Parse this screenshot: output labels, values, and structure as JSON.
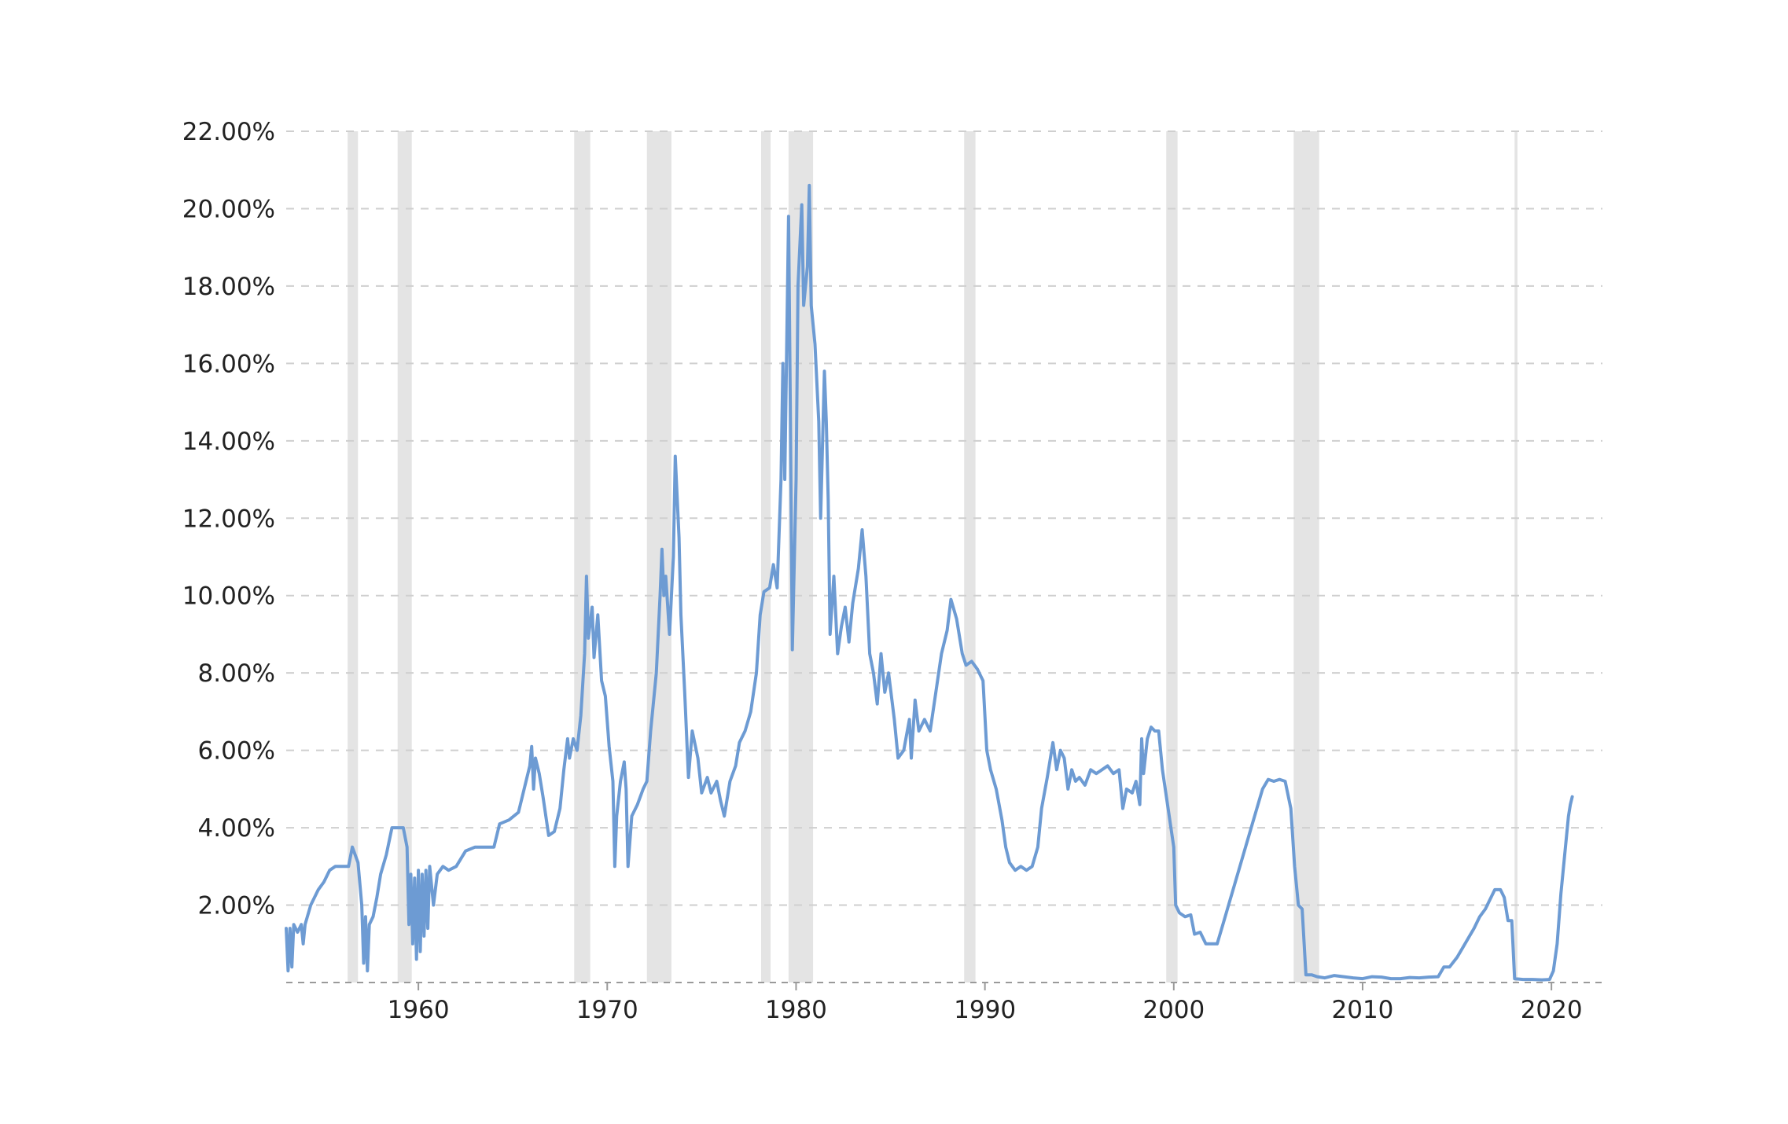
{
  "chart_data": {
    "type": "line",
    "title": "",
    "xlabel": "",
    "ylabel": "",
    "x_range": [
      1953.0,
      2022.7
    ],
    "ylim": [
      0,
      22
    ],
    "y_ticks": [
      {
        "value": 2,
        "label": "2.00%"
      },
      {
        "value": 4,
        "label": "4.00%"
      },
      {
        "value": 6,
        "label": "6.00%"
      },
      {
        "value": 8,
        "label": "8.00%"
      },
      {
        "value": 10,
        "label": "10.00%"
      },
      {
        "value": 12,
        "label": "12.00%"
      },
      {
        "value": 14,
        "label": "14.00%"
      },
      {
        "value": 16,
        "label": "16.00%"
      },
      {
        "value": 18,
        "label": "18.00%"
      },
      {
        "value": 20,
        "label": "20.00%"
      },
      {
        "value": 22,
        "label": "22.00%"
      }
    ],
    "x_ticks": [
      {
        "value": 1960,
        "label": "1960"
      },
      {
        "value": 1970,
        "label": "1970"
      },
      {
        "value": 1980,
        "label": "1980"
      },
      {
        "value": 1990,
        "label": "1990"
      },
      {
        "value": 2000,
        "label": "2000"
      },
      {
        "value": 2010,
        "label": "2010"
      },
      {
        "value": 2020,
        "label": "2020"
      }
    ],
    "grid": true,
    "legend": "none",
    "line_color": "#6d9bd3",
    "recession_color": "#e4e4e4",
    "recessions": [
      [
        1956.25,
        1956.8
      ],
      [
        1958.9,
        1959.65
      ],
      [
        1968.25,
        1969.1
      ],
      [
        1972.1,
        1973.4
      ],
      [
        1978.15,
        1978.65
      ],
      [
        1979.6,
        1980.9
      ],
      [
        1988.9,
        1989.5
      ],
      [
        1999.6,
        2000.2
      ],
      [
        2006.35,
        2007.7
      ],
      [
        2018.05,
        2018.2
      ]
    ],
    "series": [
      {
        "points": [
          [
            1953.0,
            1.4
          ],
          [
            1953.1,
            0.3
          ],
          [
            1953.2,
            1.4
          ],
          [
            1953.3,
            0.4
          ],
          [
            1953.4,
            1.5
          ],
          [
            1953.6,
            1.3
          ],
          [
            1953.8,
            1.5
          ],
          [
            1953.9,
            1.0
          ],
          [
            1954.0,
            1.5
          ],
          [
            1954.3,
            2.0
          ],
          [
            1954.7,
            2.4
          ],
          [
            1955.0,
            2.6
          ],
          [
            1955.3,
            2.9
          ],
          [
            1955.6,
            3.0
          ],
          [
            1956.0,
            3.0
          ],
          [
            1956.3,
            3.0
          ],
          [
            1956.5,
            3.5
          ],
          [
            1956.8,
            3.1
          ],
          [
            1957.0,
            2.0
          ],
          [
            1957.1,
            0.5
          ],
          [
            1957.2,
            1.7
          ],
          [
            1957.3,
            0.3
          ],
          [
            1957.4,
            1.5
          ],
          [
            1957.6,
            1.7
          ],
          [
            1957.8,
            2.2
          ],
          [
            1958.0,
            2.8
          ],
          [
            1958.3,
            3.3
          ],
          [
            1958.6,
            4.0
          ],
          [
            1959.0,
            4.0
          ],
          [
            1959.2,
            4.0
          ],
          [
            1959.4,
            3.5
          ],
          [
            1959.5,
            1.5
          ],
          [
            1959.6,
            2.8
          ],
          [
            1959.7,
            1.0
          ],
          [
            1959.8,
            2.7
          ],
          [
            1959.9,
            0.6
          ],
          [
            1960.0,
            2.9
          ],
          [
            1960.1,
            0.8
          ],
          [
            1960.2,
            2.8
          ],
          [
            1960.3,
            1.2
          ],
          [
            1960.4,
            2.9
          ],
          [
            1960.5,
            1.4
          ],
          [
            1960.6,
            3.0
          ],
          [
            1960.8,
            2.0
          ],
          [
            1961.0,
            2.8
          ],
          [
            1961.3,
            3.0
          ],
          [
            1961.6,
            2.9
          ],
          [
            1962.0,
            3.0
          ],
          [
            1962.5,
            3.4
          ],
          [
            1963.0,
            3.5
          ],
          [
            1963.5,
            3.5
          ],
          [
            1964.0,
            3.5
          ],
          [
            1964.3,
            4.1
          ],
          [
            1964.8,
            4.2
          ],
          [
            1965.3,
            4.4
          ],
          [
            1965.6,
            5.0
          ],
          [
            1965.9,
            5.6
          ],
          [
            1966.0,
            6.1
          ],
          [
            1966.1,
            5.0
          ],
          [
            1966.2,
            5.8
          ],
          [
            1966.4,
            5.4
          ],
          [
            1966.6,
            4.8
          ],
          [
            1966.9,
            3.8
          ],
          [
            1967.2,
            3.9
          ],
          [
            1967.5,
            4.5
          ],
          [
            1967.7,
            5.5
          ],
          [
            1967.9,
            6.3
          ],
          [
            1968.0,
            5.8
          ],
          [
            1968.2,
            6.3
          ],
          [
            1968.4,
            6.0
          ],
          [
            1968.6,
            6.9
          ],
          [
            1968.8,
            8.5
          ],
          [
            1968.9,
            10.5
          ],
          [
            1969.0,
            8.9
          ],
          [
            1969.2,
            9.7
          ],
          [
            1969.3,
            8.4
          ],
          [
            1969.5,
            9.5
          ],
          [
            1969.7,
            7.8
          ],
          [
            1969.9,
            7.4
          ],
          [
            1970.1,
            6.1
          ],
          [
            1970.3,
            5.2
          ],
          [
            1970.4,
            3.0
          ],
          [
            1970.5,
            4.3
          ],
          [
            1970.7,
            5.2
          ],
          [
            1970.9,
            5.7
          ],
          [
            1971.0,
            5.0
          ],
          [
            1971.1,
            3.0
          ],
          [
            1971.3,
            4.3
          ],
          [
            1971.6,
            4.6
          ],
          [
            1971.9,
            5.0
          ],
          [
            1972.1,
            5.2
          ],
          [
            1972.3,
            6.5
          ],
          [
            1972.6,
            8.0
          ],
          [
            1972.8,
            10.0
          ],
          [
            1972.9,
            11.2
          ],
          [
            1973.0,
            10.0
          ],
          [
            1973.1,
            10.5
          ],
          [
            1973.3,
            9.0
          ],
          [
            1973.5,
            11.0
          ],
          [
            1973.6,
            13.6
          ],
          [
            1973.8,
            11.5
          ],
          [
            1973.9,
            9.5
          ],
          [
            1974.1,
            7.5
          ],
          [
            1974.3,
            5.3
          ],
          [
            1974.5,
            6.5
          ],
          [
            1974.8,
            5.8
          ],
          [
            1975.0,
            4.9
          ],
          [
            1975.3,
            5.3
          ],
          [
            1975.5,
            4.9
          ],
          [
            1975.8,
            5.2
          ],
          [
            1976.0,
            4.7
          ],
          [
            1976.2,
            4.3
          ],
          [
            1976.5,
            5.2
          ],
          [
            1976.8,
            5.6
          ],
          [
            1977.0,
            6.2
          ],
          [
            1977.3,
            6.5
          ],
          [
            1977.6,
            7.0
          ],
          [
            1977.9,
            8.0
          ],
          [
            1978.1,
            9.5
          ],
          [
            1978.3,
            10.1
          ],
          [
            1978.6,
            10.2
          ],
          [
            1978.8,
            10.8
          ],
          [
            1979.0,
            10.2
          ],
          [
            1979.2,
            13.0
          ],
          [
            1979.3,
            16.0
          ],
          [
            1979.4,
            13.0
          ],
          [
            1979.6,
            19.8
          ],
          [
            1979.7,
            14.5
          ],
          [
            1979.8,
            8.6
          ],
          [
            1980.0,
            13.0
          ],
          [
            1980.1,
            18.0
          ],
          [
            1980.3,
            20.1
          ],
          [
            1980.4,
            17.5
          ],
          [
            1980.6,
            18.5
          ],
          [
            1980.7,
            20.6
          ],
          [
            1980.8,
            17.5
          ],
          [
            1981.0,
            16.5
          ],
          [
            1981.2,
            14.5
          ],
          [
            1981.3,
            12.0
          ],
          [
            1981.5,
            15.8
          ],
          [
            1981.6,
            14.5
          ],
          [
            1981.7,
            12.5
          ],
          [
            1981.8,
            9.0
          ],
          [
            1982.0,
            10.5
          ],
          [
            1982.2,
            8.5
          ],
          [
            1982.4,
            9.2
          ],
          [
            1982.6,
            9.7
          ],
          [
            1982.8,
            8.8
          ],
          [
            1983.0,
            9.8
          ],
          [
            1983.3,
            10.7
          ],
          [
            1983.5,
            11.7
          ],
          [
            1983.7,
            10.5
          ],
          [
            1983.9,
            8.5
          ],
          [
            1984.1,
            8.0
          ],
          [
            1984.3,
            7.2
          ],
          [
            1984.5,
            8.5
          ],
          [
            1984.7,
            7.5
          ],
          [
            1984.9,
            8.0
          ],
          [
            1985.2,
            6.8
          ],
          [
            1985.4,
            5.8
          ],
          [
            1985.7,
            6.0
          ],
          [
            1986.0,
            6.8
          ],
          [
            1986.1,
            5.8
          ],
          [
            1986.3,
            7.3
          ],
          [
            1986.5,
            6.5
          ],
          [
            1986.8,
            6.8
          ],
          [
            1987.1,
            6.5
          ],
          [
            1987.4,
            7.5
          ],
          [
            1987.7,
            8.5
          ],
          [
            1988.0,
            9.1
          ],
          [
            1988.2,
            9.9
          ],
          [
            1988.5,
            9.4
          ],
          [
            1988.8,
            8.5
          ],
          [
            1989.0,
            8.2
          ],
          [
            1989.3,
            8.3
          ],
          [
            1989.6,
            8.1
          ],
          [
            1989.9,
            7.8
          ],
          [
            1990.1,
            6.0
          ],
          [
            1990.3,
            5.5
          ],
          [
            1990.6,
            5.0
          ],
          [
            1990.9,
            4.2
          ],
          [
            1991.1,
            3.5
          ],
          [
            1991.3,
            3.1
          ],
          [
            1991.6,
            2.9
          ],
          [
            1991.9,
            3.0
          ],
          [
            1992.2,
            2.9
          ],
          [
            1992.5,
            3.0
          ],
          [
            1992.8,
            3.5
          ],
          [
            1993.0,
            4.5
          ],
          [
            1993.3,
            5.3
          ],
          [
            1993.6,
            6.2
          ],
          [
            1993.8,
            5.5
          ],
          [
            1994.0,
            6.0
          ],
          [
            1994.2,
            5.8
          ],
          [
            1994.4,
            5.0
          ],
          [
            1994.6,
            5.5
          ],
          [
            1994.8,
            5.2
          ],
          [
            1995.0,
            5.3
          ],
          [
            1995.3,
            5.1
          ],
          [
            1995.6,
            5.5
          ],
          [
            1995.9,
            5.4
          ],
          [
            1996.2,
            5.5
          ],
          [
            1996.5,
            5.6
          ],
          [
            1996.8,
            5.4
          ],
          [
            1997.1,
            5.5
          ],
          [
            1997.3,
            4.5
          ],
          [
            1997.5,
            5.0
          ],
          [
            1997.8,
            4.9
          ],
          [
            1998.0,
            5.2
          ],
          [
            1998.2,
            4.6
          ],
          [
            1998.3,
            6.3
          ],
          [
            1998.4,
            5.4
          ],
          [
            1998.6,
            6.3
          ],
          [
            1998.8,
            6.6
          ],
          [
            1999.0,
            6.5
          ],
          [
            1999.2,
            6.5
          ],
          [
            1999.4,
            5.5
          ],
          [
            1999.7,
            4.5
          ],
          [
            2000.0,
            3.5
          ],
          [
            2000.1,
            2.0
          ],
          [
            2000.3,
            1.8
          ],
          [
            2000.6,
            1.7
          ],
          [
            2000.9,
            1.75
          ],
          [
            2001.1,
            1.25
          ],
          [
            2001.4,
            1.3
          ],
          [
            2001.7,
            1.0
          ],
          [
            2002.0,
            1.0
          ],
          [
            2002.3,
            1.0
          ],
          [
            2002.6,
            1.5
          ],
          [
            2002.9,
            2.0
          ],
          [
            2003.2,
            2.5
          ],
          [
            2003.5,
            3.0
          ],
          [
            2003.8,
            3.5
          ],
          [
            2004.1,
            4.0
          ],
          [
            2004.4,
            4.5
          ],
          [
            2004.7,
            5.0
          ],
          [
            2005.0,
            5.25
          ],
          [
            2005.3,
            5.2
          ],
          [
            2005.6,
            5.25
          ],
          [
            2005.9,
            5.2
          ],
          [
            2006.2,
            4.5
          ],
          [
            2006.4,
            3.0
          ],
          [
            2006.6,
            2.0
          ],
          [
            2006.8,
            1.9
          ],
          [
            2007.0,
            0.2
          ],
          [
            2007.3,
            0.2
          ],
          [
            2007.6,
            0.15
          ],
          [
            2008.0,
            0.12
          ],
          [
            2008.5,
            0.18
          ],
          [
            2009.0,
            0.15
          ],
          [
            2009.5,
            0.12
          ],
          [
            2010.0,
            0.1
          ],
          [
            2010.5,
            0.15
          ],
          [
            2011.0,
            0.14
          ],
          [
            2011.5,
            0.1
          ],
          [
            2012.0,
            0.1
          ],
          [
            2012.5,
            0.13
          ],
          [
            2013.0,
            0.12
          ],
          [
            2013.5,
            0.14
          ],
          [
            2014.0,
            0.15
          ],
          [
            2014.3,
            0.4
          ],
          [
            2014.6,
            0.4
          ],
          [
            2015.0,
            0.65
          ],
          [
            2015.3,
            0.9
          ],
          [
            2015.6,
            1.15
          ],
          [
            2015.9,
            1.4
          ],
          [
            2016.2,
            1.7
          ],
          [
            2016.5,
            1.9
          ],
          [
            2016.8,
            2.2
          ],
          [
            2017.0,
            2.4
          ],
          [
            2017.3,
            2.4
          ],
          [
            2017.5,
            2.2
          ],
          [
            2017.7,
            1.6
          ],
          [
            2017.9,
            1.6
          ],
          [
            2018.05,
            0.1
          ],
          [
            2018.5,
            0.08
          ],
          [
            2019.0,
            0.08
          ],
          [
            2019.5,
            0.07
          ],
          [
            2019.9,
            0.08
          ],
          [
            2020.1,
            0.3
          ],
          [
            2020.3,
            1.0
          ],
          [
            2020.5,
            2.3
          ],
          [
            2020.7,
            3.3
          ],
          [
            2020.9,
            4.3
          ],
          [
            2021.0,
            4.6
          ],
          [
            2021.1,
            4.8
          ]
        ]
      }
    ]
  }
}
